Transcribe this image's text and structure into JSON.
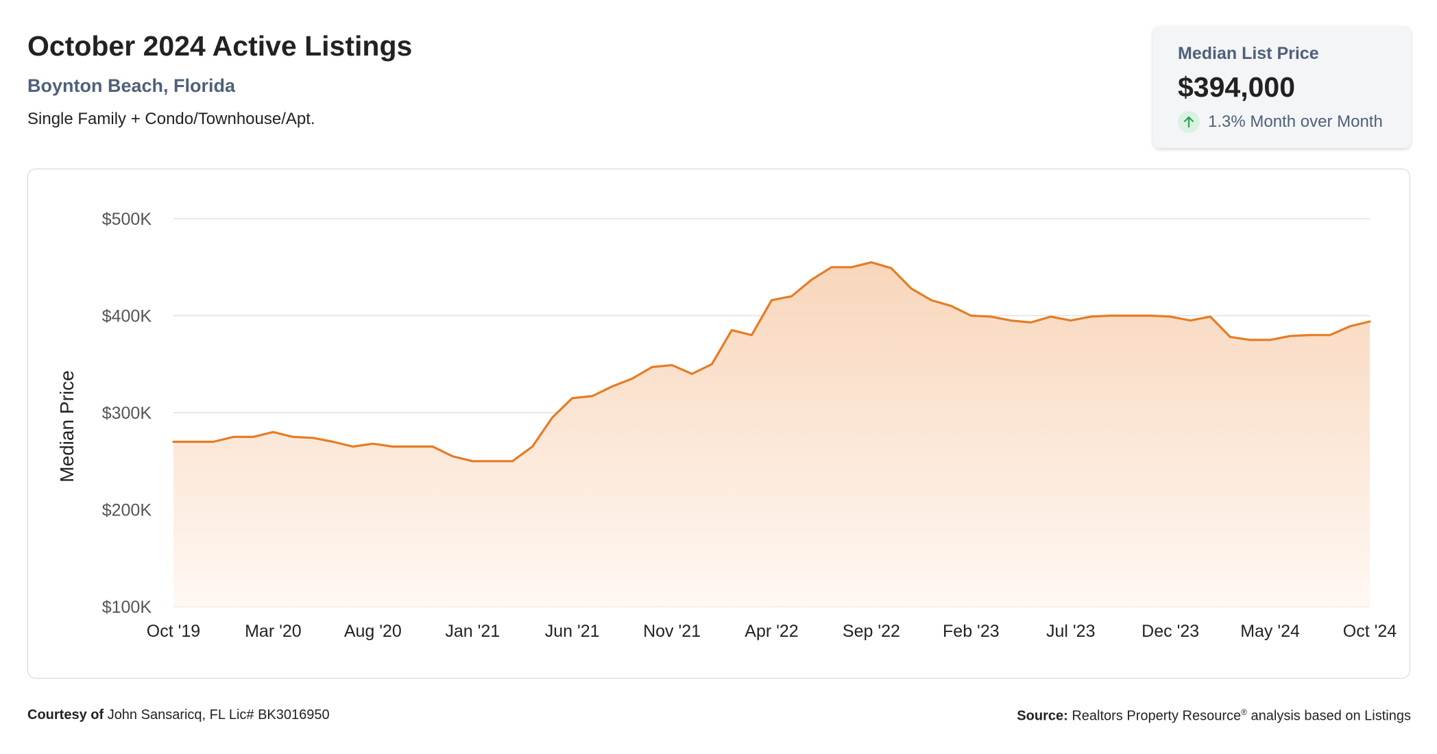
{
  "header": {
    "title": "October 2024 Active Listings",
    "location": "Boynton Beach, Florida",
    "property_types": "Single Family + Condo/Townhouse/Apt."
  },
  "stat": {
    "label": "Median List Price",
    "value": "$394,000",
    "change": "1.3% Month over Month",
    "direction_icon": "arrow-up-icon",
    "direction_color": "#2e9e5b"
  },
  "footer": {
    "courtesy_label": "Courtesy of",
    "courtesy_text": "John Sansaricq, FL Lic# BK3016950",
    "source_label": "Source:",
    "source_text": "Realtors Property Resource",
    "source_mark": "®",
    "source_suffix": "analysis based on Listings"
  },
  "colors": {
    "line": "#e57c24",
    "fill_top": "#f8d6bb",
    "fill_bottom": "#fff8f3",
    "grid": "#e0e0e0"
  },
  "chart_data": {
    "type": "area",
    "title": "",
    "xlabel": "",
    "ylabel": "Median Price",
    "ylim": [
      100000,
      500000
    ],
    "yticks": [
      100000,
      200000,
      300000,
      400000,
      500000
    ],
    "ytick_labels": [
      "$100K",
      "$200K",
      "$300K",
      "$400K",
      "$500K"
    ],
    "xtick_labels": [
      "Oct '19",
      "Mar '20",
      "Aug '20",
      "Jan '21",
      "Jun '21",
      "Nov '21",
      "Apr '22",
      "Sep '22",
      "Feb '23",
      "Jul '23",
      "Dec '23",
      "May '24",
      "Oct '24"
    ],
    "grid": true,
    "series": [
      {
        "x": [
          "Oct '19",
          "Nov '19",
          "Dec '19",
          "Jan '20",
          "Feb '20",
          "Mar '20",
          "Apr '20",
          "May '20",
          "Jun '20",
          "Jul '20",
          "Aug '20",
          "Sep '20",
          "Oct '20",
          "Nov '20",
          "Dec '20",
          "Jan '21",
          "Feb '21",
          "Mar '21",
          "Apr '21",
          "May '21",
          "Jun '21",
          "Jul '21",
          "Aug '21",
          "Sep '21",
          "Oct '21",
          "Nov '21",
          "Dec '21",
          "Jan '22",
          "Feb '22",
          "Mar '22",
          "Apr '22",
          "May '22",
          "Jun '22",
          "Jul '22",
          "Aug '22",
          "Sep '22",
          "Oct '22",
          "Nov '22",
          "Dec '22",
          "Jan '23",
          "Feb '23",
          "Mar '23",
          "Apr '23",
          "May '23",
          "Jun '23",
          "Jul '23",
          "Aug '23",
          "Sep '23",
          "Oct '23",
          "Nov '23",
          "Dec '23",
          "Jan '24",
          "Feb '24",
          "Mar '24",
          "Apr '24",
          "May '24",
          "Jun '24",
          "Jul '24",
          "Aug '24",
          "Sep '24",
          "Oct '24"
        ],
        "values": [
          270000,
          270000,
          270000,
          275000,
          275000,
          280000,
          275000,
          274000,
          270000,
          265000,
          268000,
          265000,
          265000,
          265000,
          255000,
          250000,
          250000,
          250000,
          265000,
          295000,
          315000,
          317000,
          327000,
          335000,
          347000,
          349000,
          340000,
          350000,
          385000,
          380000,
          416000,
          420000,
          437000,
          450000,
          450000,
          455000,
          449000,
          428000,
          416000,
          410000,
          400000,
          399000,
          395000,
          393000,
          399000,
          395000,
          399000,
          400000,
          400000,
          400000,
          399000,
          395000,
          399000,
          378000,
          375000,
          375000,
          379000,
          380000,
          380000,
          389000,
          394000
        ]
      }
    ]
  }
}
